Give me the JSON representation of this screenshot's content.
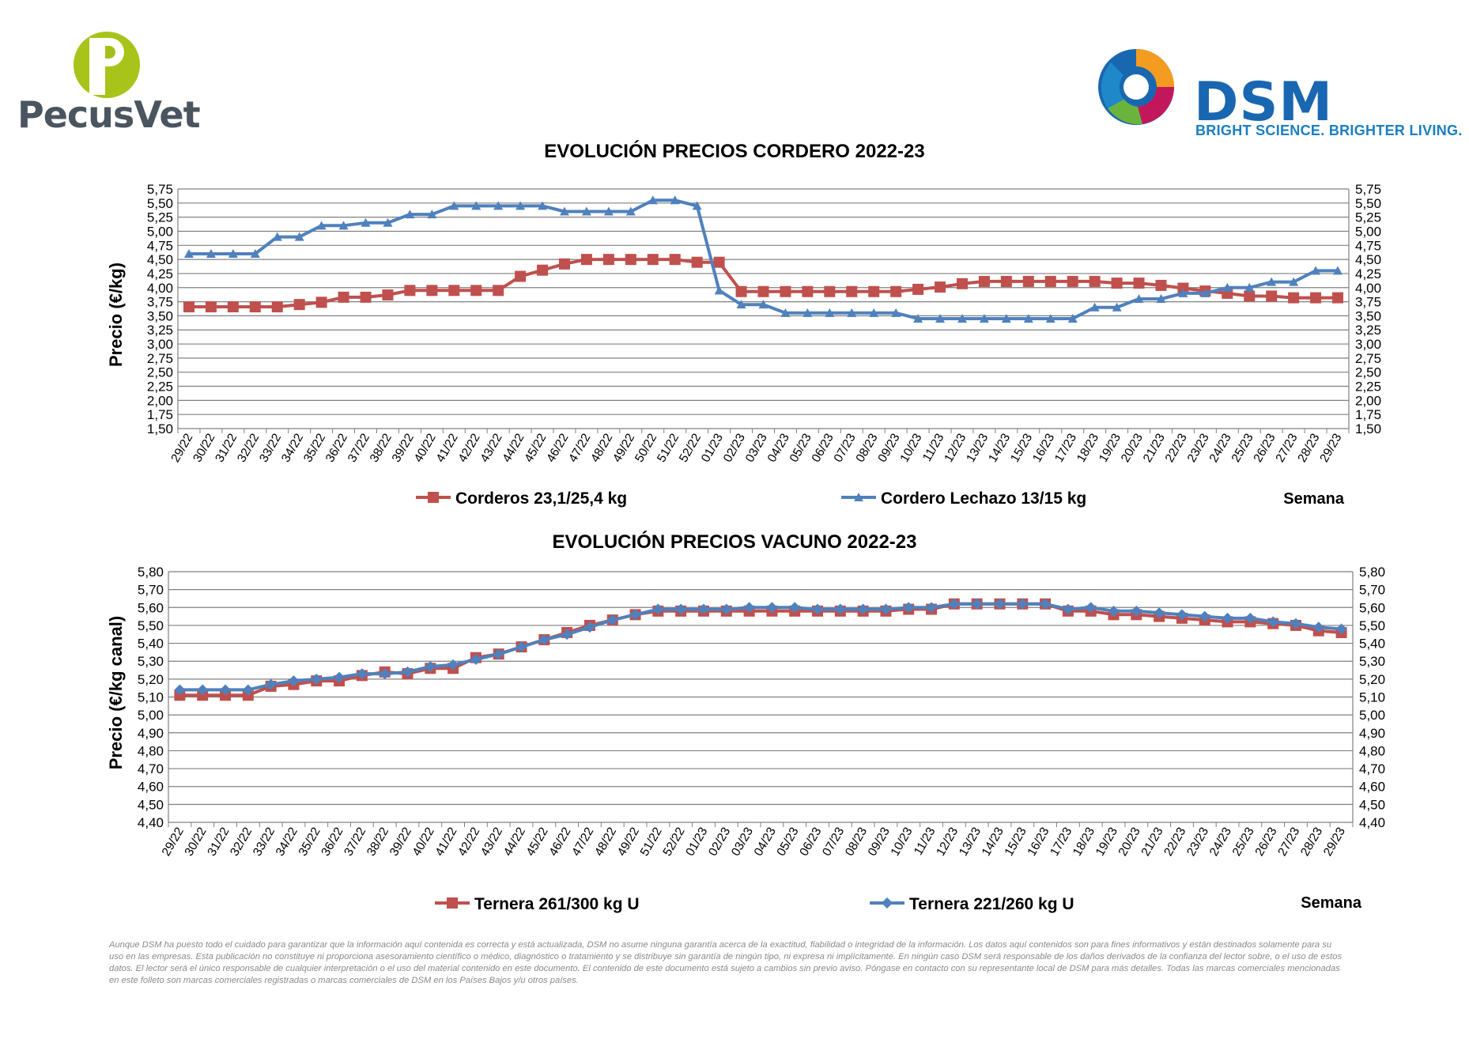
{
  "logos": {
    "pecusvet_name": "PecusVet",
    "dsm_name": "DSM",
    "dsm_tagline": "BRIGHT SCIENCE. BRIGHTER LIVING."
  },
  "colors": {
    "series_red": "#c0504d",
    "series_blue": "#4f81bd",
    "grid": "#808080"
  },
  "chart_data": [
    {
      "type": "line",
      "title": "EVOLUCIÓN PRECIOS CORDERO 2022-23",
      "ylabel": "Precio (€/kg)",
      "xlabel": "Semana",
      "ylim": [
        1.5,
        5.75
      ],
      "ystep": 0.25,
      "grid": true,
      "legend_position": "bottom",
      "x": [
        "29/22",
        "30/22",
        "31/22",
        "32/22",
        "33/22",
        "34/22",
        "35/22",
        "36/22",
        "37/22",
        "38/22",
        "39/22",
        "40/22",
        "41/22",
        "42/22",
        "43/22",
        "44/22",
        "45/22",
        "46/22",
        "47/22",
        "48/22",
        "49/22",
        "50/22",
        "51/22",
        "52/22",
        "01/23",
        "02/23",
        "03/23",
        "04/23",
        "05/23",
        "06/23",
        "07/23",
        "08/23",
        "09/23",
        "10/23",
        "11/23",
        "12/23",
        "13/23",
        "14/23",
        "15/23",
        "16/23",
        "17/23",
        "18/23",
        "19/23",
        "20/23",
        "21/23",
        "22/23",
        "23/23",
        "24/23",
        "25/23",
        "26/23",
        "27/23",
        "28/23",
        "29/23"
      ],
      "series": [
        {
          "name": "Corderos 23,1/25,4 kg",
          "marker": "square",
          "values": [
            3.66,
            3.66,
            3.66,
            3.66,
            3.66,
            3.7,
            3.74,
            3.83,
            3.83,
            3.87,
            3.95,
            3.95,
            3.95,
            3.95,
            3.95,
            4.2,
            4.31,
            4.42,
            4.5,
            4.5,
            4.5,
            4.5,
            4.5,
            4.45,
            4.45,
            3.93,
            3.93,
            3.93,
            3.93,
            3.93,
            3.93,
            3.93,
            3.93,
            3.97,
            4.01,
            4.07,
            4.11,
            4.11,
            4.11,
            4.11,
            4.11,
            4.11,
            4.08,
            4.08,
            4.04,
            3.99,
            3.94,
            3.9,
            3.85,
            3.85,
            3.82,
            3.82,
            3.82
          ]
        },
        {
          "name": "Cordero Lechazo 13/15 kg",
          "marker": "triangle",
          "values": [
            4.6,
            4.6,
            4.6,
            4.6,
            4.9,
            4.9,
            5.1,
            5.1,
            5.15,
            5.15,
            5.3,
            5.3,
            5.45,
            5.45,
            5.45,
            5.45,
            5.45,
            5.35,
            5.35,
            5.35,
            5.35,
            5.55,
            5.55,
            5.45,
            3.95,
            3.7,
            3.7,
            3.55,
            3.55,
            3.55,
            3.55,
            3.55,
            3.55,
            3.45,
            3.45,
            3.45,
            3.45,
            3.45,
            3.45,
            3.45,
            3.45,
            3.65,
            3.65,
            3.8,
            3.8,
            3.9,
            3.9,
            4.0,
            4.0,
            4.1,
            4.1,
            4.3,
            4.3
          ]
        }
      ]
    },
    {
      "type": "line",
      "title": "EVOLUCIÓN PRECIOS VACUNO 2022-23",
      "ylabel": "Precio (€/kg canal)",
      "xlabel": "Semana",
      "ylim": [
        4.4,
        5.8
      ],
      "ystep": 0.1,
      "grid": true,
      "legend_position": "bottom",
      "x": [
        "29/22",
        "30/22",
        "31/22",
        "32/22",
        "33/22",
        "34/22",
        "35/22",
        "36/22",
        "37/22",
        "38/22",
        "39/22",
        "40/22",
        "41/22",
        "42/22",
        "43/22",
        "44/22",
        "45/22",
        "46/22",
        "47/22",
        "48/22",
        "49/22",
        "51/22",
        "52/22",
        "01/23",
        "02/23",
        "03/23",
        "04/23",
        "05/23",
        "06/23",
        "07/23",
        "08/23",
        "09/23",
        "10/23",
        "11/23",
        "12/23",
        "13/23",
        "14/23",
        "15/23",
        "16/23",
        "17/23",
        "18/23",
        "19/23",
        "20/23",
        "21/23",
        "22/23",
        "23/23",
        "24/23",
        "25/23",
        "26/23",
        "27/23",
        "28/23",
        "29/23"
      ],
      "series": [
        {
          "name": "Ternera 261/300 kg U",
          "marker": "square",
          "values": [
            5.11,
            5.11,
            5.11,
            5.11,
            5.16,
            5.17,
            5.19,
            5.19,
            5.22,
            5.24,
            5.23,
            5.26,
            5.26,
            5.32,
            5.34,
            5.38,
            5.42,
            5.46,
            5.5,
            5.53,
            5.56,
            5.58,
            5.58,
            5.58,
            5.58,
            5.58,
            5.58,
            5.58,
            5.58,
            5.58,
            5.58,
            5.58,
            5.59,
            5.59,
            5.62,
            5.62,
            5.62,
            5.62,
            5.62,
            5.58,
            5.58,
            5.56,
            5.56,
            5.55,
            5.54,
            5.53,
            5.52,
            5.52,
            5.51,
            5.5,
            5.47,
            5.46
          ]
        },
        {
          "name": "Ternera 221/260 kg U",
          "marker": "diamond",
          "values": [
            5.14,
            5.14,
            5.14,
            5.14,
            5.17,
            5.19,
            5.2,
            5.21,
            5.23,
            5.23,
            5.24,
            5.27,
            5.28,
            5.31,
            5.34,
            5.38,
            5.42,
            5.45,
            5.49,
            5.53,
            5.56,
            5.59,
            5.59,
            5.59,
            5.59,
            5.6,
            5.6,
            5.6,
            5.59,
            5.59,
            5.59,
            5.59,
            5.6,
            5.6,
            5.62,
            5.62,
            5.62,
            5.62,
            5.62,
            5.59,
            5.6,
            5.58,
            5.58,
            5.57,
            5.56,
            5.55,
            5.54,
            5.54,
            5.52,
            5.51,
            5.49,
            5.48
          ]
        }
      ]
    }
  ],
  "disclaimer": "Aunque DSM ha puesto todo el cuidado para garantizar que la información aquí contenida es correcta y está actualizada, DSM no asume ninguna garantía acerca de la exactitud, fiabilidad o integridad de la información. Los datos aquí contenidos son para fines informativos y están destinados solamente para su uso en las empresas. Esta publicación no constituye ni proporciona asesoramiento científico o médico, diagnóstico o tratamiento y se distribuye sin garantía de ningún tipo, ni expresa ni implícitamente. En ningún caso DSM será responsable de los daños derivados de la confianza del lector sobre, o el uso de estos datos. El lector será el único responsable de cualquier interpretación o el uso del material contenido en este documento. El contenido de este documento está sujeto a cambios sin previo aviso. Póngase en contacto con su representante local de DSM para más detalles. Todas las marcas comerciales mencionadas en este folleto son marcas comerciales registradas o marcas comerciales de DSM en los Países Bajos y/u otros países."
}
